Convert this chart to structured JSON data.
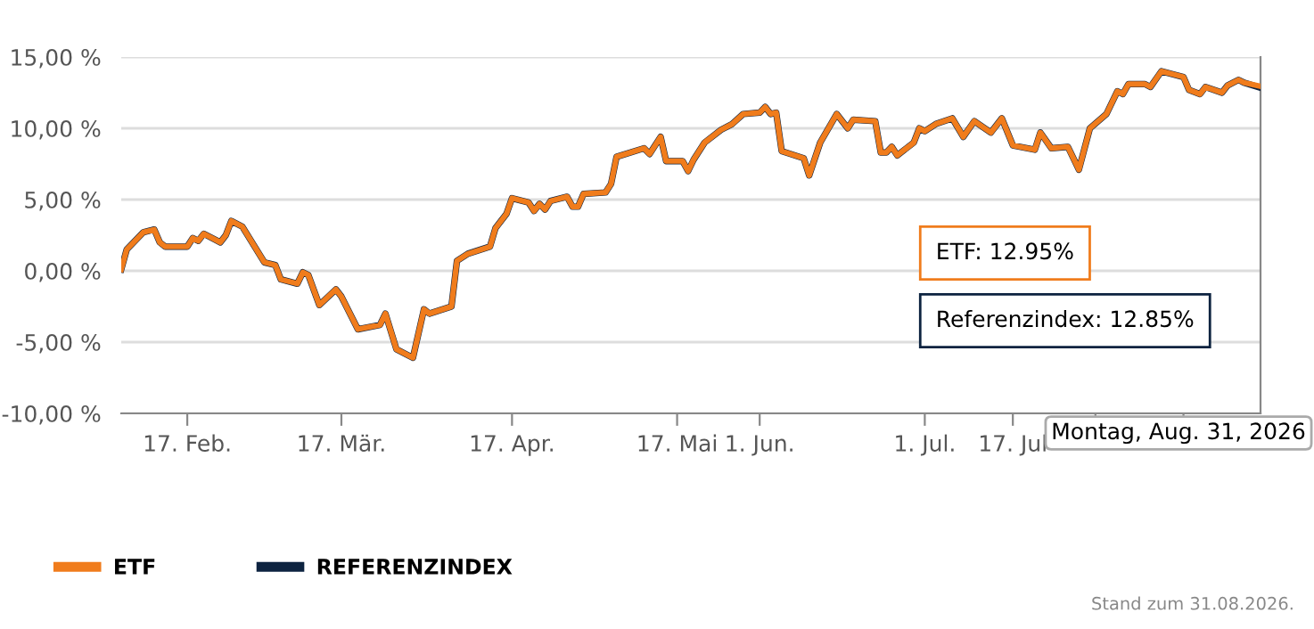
{
  "chart_data": {
    "type": "line",
    "x": [
      "2026-02-05",
      "2026-02-06",
      "2026-02-09",
      "2026-02-11",
      "2026-02-12",
      "2026-02-13",
      "2026-02-17",
      "2026-02-18",
      "2026-02-19",
      "2026-02-20",
      "2026-02-23",
      "2026-02-24",
      "2026-02-25",
      "2026-02-27",
      "2026-03-03",
      "2026-03-05",
      "2026-03-06",
      "2026-03-09",
      "2026-03-10",
      "2026-03-11",
      "2026-03-13",
      "2026-03-16",
      "2026-03-17",
      "2026-03-20",
      "2026-03-24",
      "2026-03-25",
      "2026-03-27",
      "2026-03-30",
      "2026-04-01",
      "2026-04-02",
      "2026-04-06",
      "2026-04-07",
      "2026-04-09",
      "2026-04-13",
      "2026-04-14",
      "2026-04-16",
      "2026-04-17",
      "2026-04-20",
      "2026-04-21",
      "2026-04-22",
      "2026-04-23",
      "2026-04-24",
      "2026-04-27",
      "2026-04-28",
      "2026-04-29",
      "2026-04-30",
      "2026-05-04",
      "2026-05-05",
      "2026-05-06",
      "2026-05-11",
      "2026-05-12",
      "2026-05-14",
      "2026-05-15",
      "2026-05-18",
      "2026-05-19",
      "2026-05-20",
      "2026-05-22",
      "2026-05-25",
      "2026-05-27",
      "2026-05-29",
      "2026-06-01",
      "2026-06-02",
      "2026-06-03",
      "2026-06-04",
      "2026-06-05",
      "2026-06-09",
      "2026-06-10",
      "2026-06-12",
      "2026-06-15",
      "2026-06-17",
      "2026-06-18",
      "2026-06-22",
      "2026-06-23",
      "2026-06-24",
      "2026-06-25",
      "2026-06-26",
      "2026-06-29",
      "2026-06-30",
      "2026-07-01",
      "2026-07-03",
      "2026-07-06",
      "2026-07-08",
      "2026-07-10",
      "2026-07-13",
      "2026-07-15",
      "2026-07-17",
      "2026-07-21",
      "2026-07-22",
      "2026-07-24",
      "2026-07-27",
      "2026-07-29",
      "2026-07-31",
      "2026-08-03",
      "2026-08-05",
      "2026-08-06",
      "2026-08-07",
      "2026-08-10",
      "2026-08-11",
      "2026-08-13",
      "2026-08-17",
      "2026-08-18",
      "2026-08-20",
      "2026-08-21",
      "2026-08-24",
      "2026-08-25",
      "2026-08-27",
      "2026-08-28",
      "2026-08-31"
    ],
    "series": [
      {
        "name": "ETF",
        "color": "#f07c1c",
        "values": [
          0.1,
          1.5,
          2.7,
          2.9,
          2.0,
          1.7,
          1.7,
          2.3,
          2.1,
          2.6,
          2.0,
          2.5,
          3.5,
          3.1,
          0.6,
          0.4,
          -0.6,
          -0.9,
          -0.1,
          -0.3,
          -2.4,
          -1.3,
          -1.8,
          -4.1,
          -3.8,
          -3.0,
          -5.5,
          -6.1,
          -2.7,
          -3.0,
          -2.5,
          0.7,
          1.2,
          1.7,
          3.0,
          4.0,
          5.1,
          4.8,
          4.2,
          4.7,
          4.3,
          4.9,
          5.2,
          4.5,
          4.5,
          5.4,
          5.5,
          6.1,
          8.0,
          8.6,
          8.2,
          9.4,
          7.7,
          7.7,
          7.0,
          7.8,
          9.0,
          9.9,
          10.3,
          11.0,
          11.1,
          11.5,
          11.0,
          11.1,
          8.4,
          7.9,
          6.7,
          9.0,
          11.0,
          10.0,
          10.6,
          10.5,
          8.3,
          8.3,
          8.7,
          8.1,
          9.0,
          10.0,
          9.8,
          10.3,
          10.7,
          9.4,
          10.5,
          9.7,
          10.7,
          8.8,
          8.5,
          9.7,
          8.6,
          8.7,
          7.1,
          10.0,
          11.0,
          12.6,
          12.4,
          13.1,
          13.1,
          12.9,
          14.0,
          13.6,
          12.7,
          12.4,
          12.9,
          12.5,
          13.0,
          13.4,
          13.2,
          12.95
        ]
      },
      {
        "name": "REFERENZINDEX",
        "color": "#0d2340",
        "values": [
          0.1,
          1.5,
          2.7,
          2.9,
          2.0,
          1.7,
          1.7,
          2.3,
          2.1,
          2.6,
          2.0,
          2.5,
          3.5,
          3.1,
          0.6,
          0.4,
          -0.6,
          -0.9,
          -0.1,
          -0.3,
          -2.4,
          -1.3,
          -1.8,
          -4.1,
          -3.8,
          -3.0,
          -5.5,
          -6.1,
          -2.7,
          -3.0,
          -2.5,
          0.7,
          1.2,
          1.7,
          3.0,
          4.0,
          5.1,
          4.8,
          4.2,
          4.7,
          4.3,
          4.9,
          5.2,
          4.5,
          4.5,
          5.4,
          5.5,
          6.1,
          8.0,
          8.6,
          8.2,
          9.4,
          7.7,
          7.7,
          7.0,
          7.8,
          9.0,
          9.9,
          10.3,
          11.0,
          11.1,
          11.5,
          11.0,
          11.1,
          8.4,
          7.9,
          6.7,
          9.0,
          11.0,
          10.0,
          10.6,
          10.5,
          8.3,
          8.3,
          8.7,
          8.1,
          9.0,
          10.0,
          9.8,
          10.3,
          10.7,
          9.4,
          10.5,
          9.7,
          10.7,
          8.8,
          8.5,
          9.7,
          8.6,
          8.7,
          7.1,
          10.0,
          11.0,
          12.6,
          12.4,
          13.1,
          13.1,
          12.9,
          14.0,
          13.6,
          12.7,
          12.4,
          12.9,
          12.5,
          13.0,
          13.4,
          13.2,
          12.85
        ]
      }
    ],
    "xlim": [
      "2026-02-05",
      "2026-08-31"
    ],
    "xticks": [
      {
        "value": "2026-02-17",
        "label": "17. Feb."
      },
      {
        "value": "2026-03-17",
        "label": "17. Mär."
      },
      {
        "value": "2026-04-17",
        "label": "17. Apr."
      },
      {
        "value": "2026-05-17",
        "label": "17. Mai"
      },
      {
        "value": "2026-06-01",
        "label": "1. Jun."
      },
      {
        "value": "2026-07-01",
        "label": "1. Jul."
      },
      {
        "value": "2026-07-17",
        "label": "17. Jul"
      },
      {
        "value": "2026-08-01",
        "label": null
      },
      {
        "value": "2026-08-17",
        "label": null
      }
    ],
    "ylim": [
      -10,
      15
    ],
    "yticks": [
      {
        "value": -10,
        "label": "-10,00 %"
      },
      {
        "value": -5,
        "label": "-5,00 %"
      },
      {
        "value": 0,
        "label": "0,00 %"
      },
      {
        "value": 5,
        "label": "5,00 %"
      },
      {
        "value": 10,
        "label": "10,00 %"
      },
      {
        "value": 15,
        "label": "15,00 %"
      }
    ],
    "grid": "y",
    "legend": "bottom left",
    "line_style": "solid",
    "annotations": [
      "ETF: 12.95%",
      "Referenzindex: 12.85%",
      "Montag, Aug. 31, 2026",
      "Stand zum 31.08.2026."
    ]
  }
}
